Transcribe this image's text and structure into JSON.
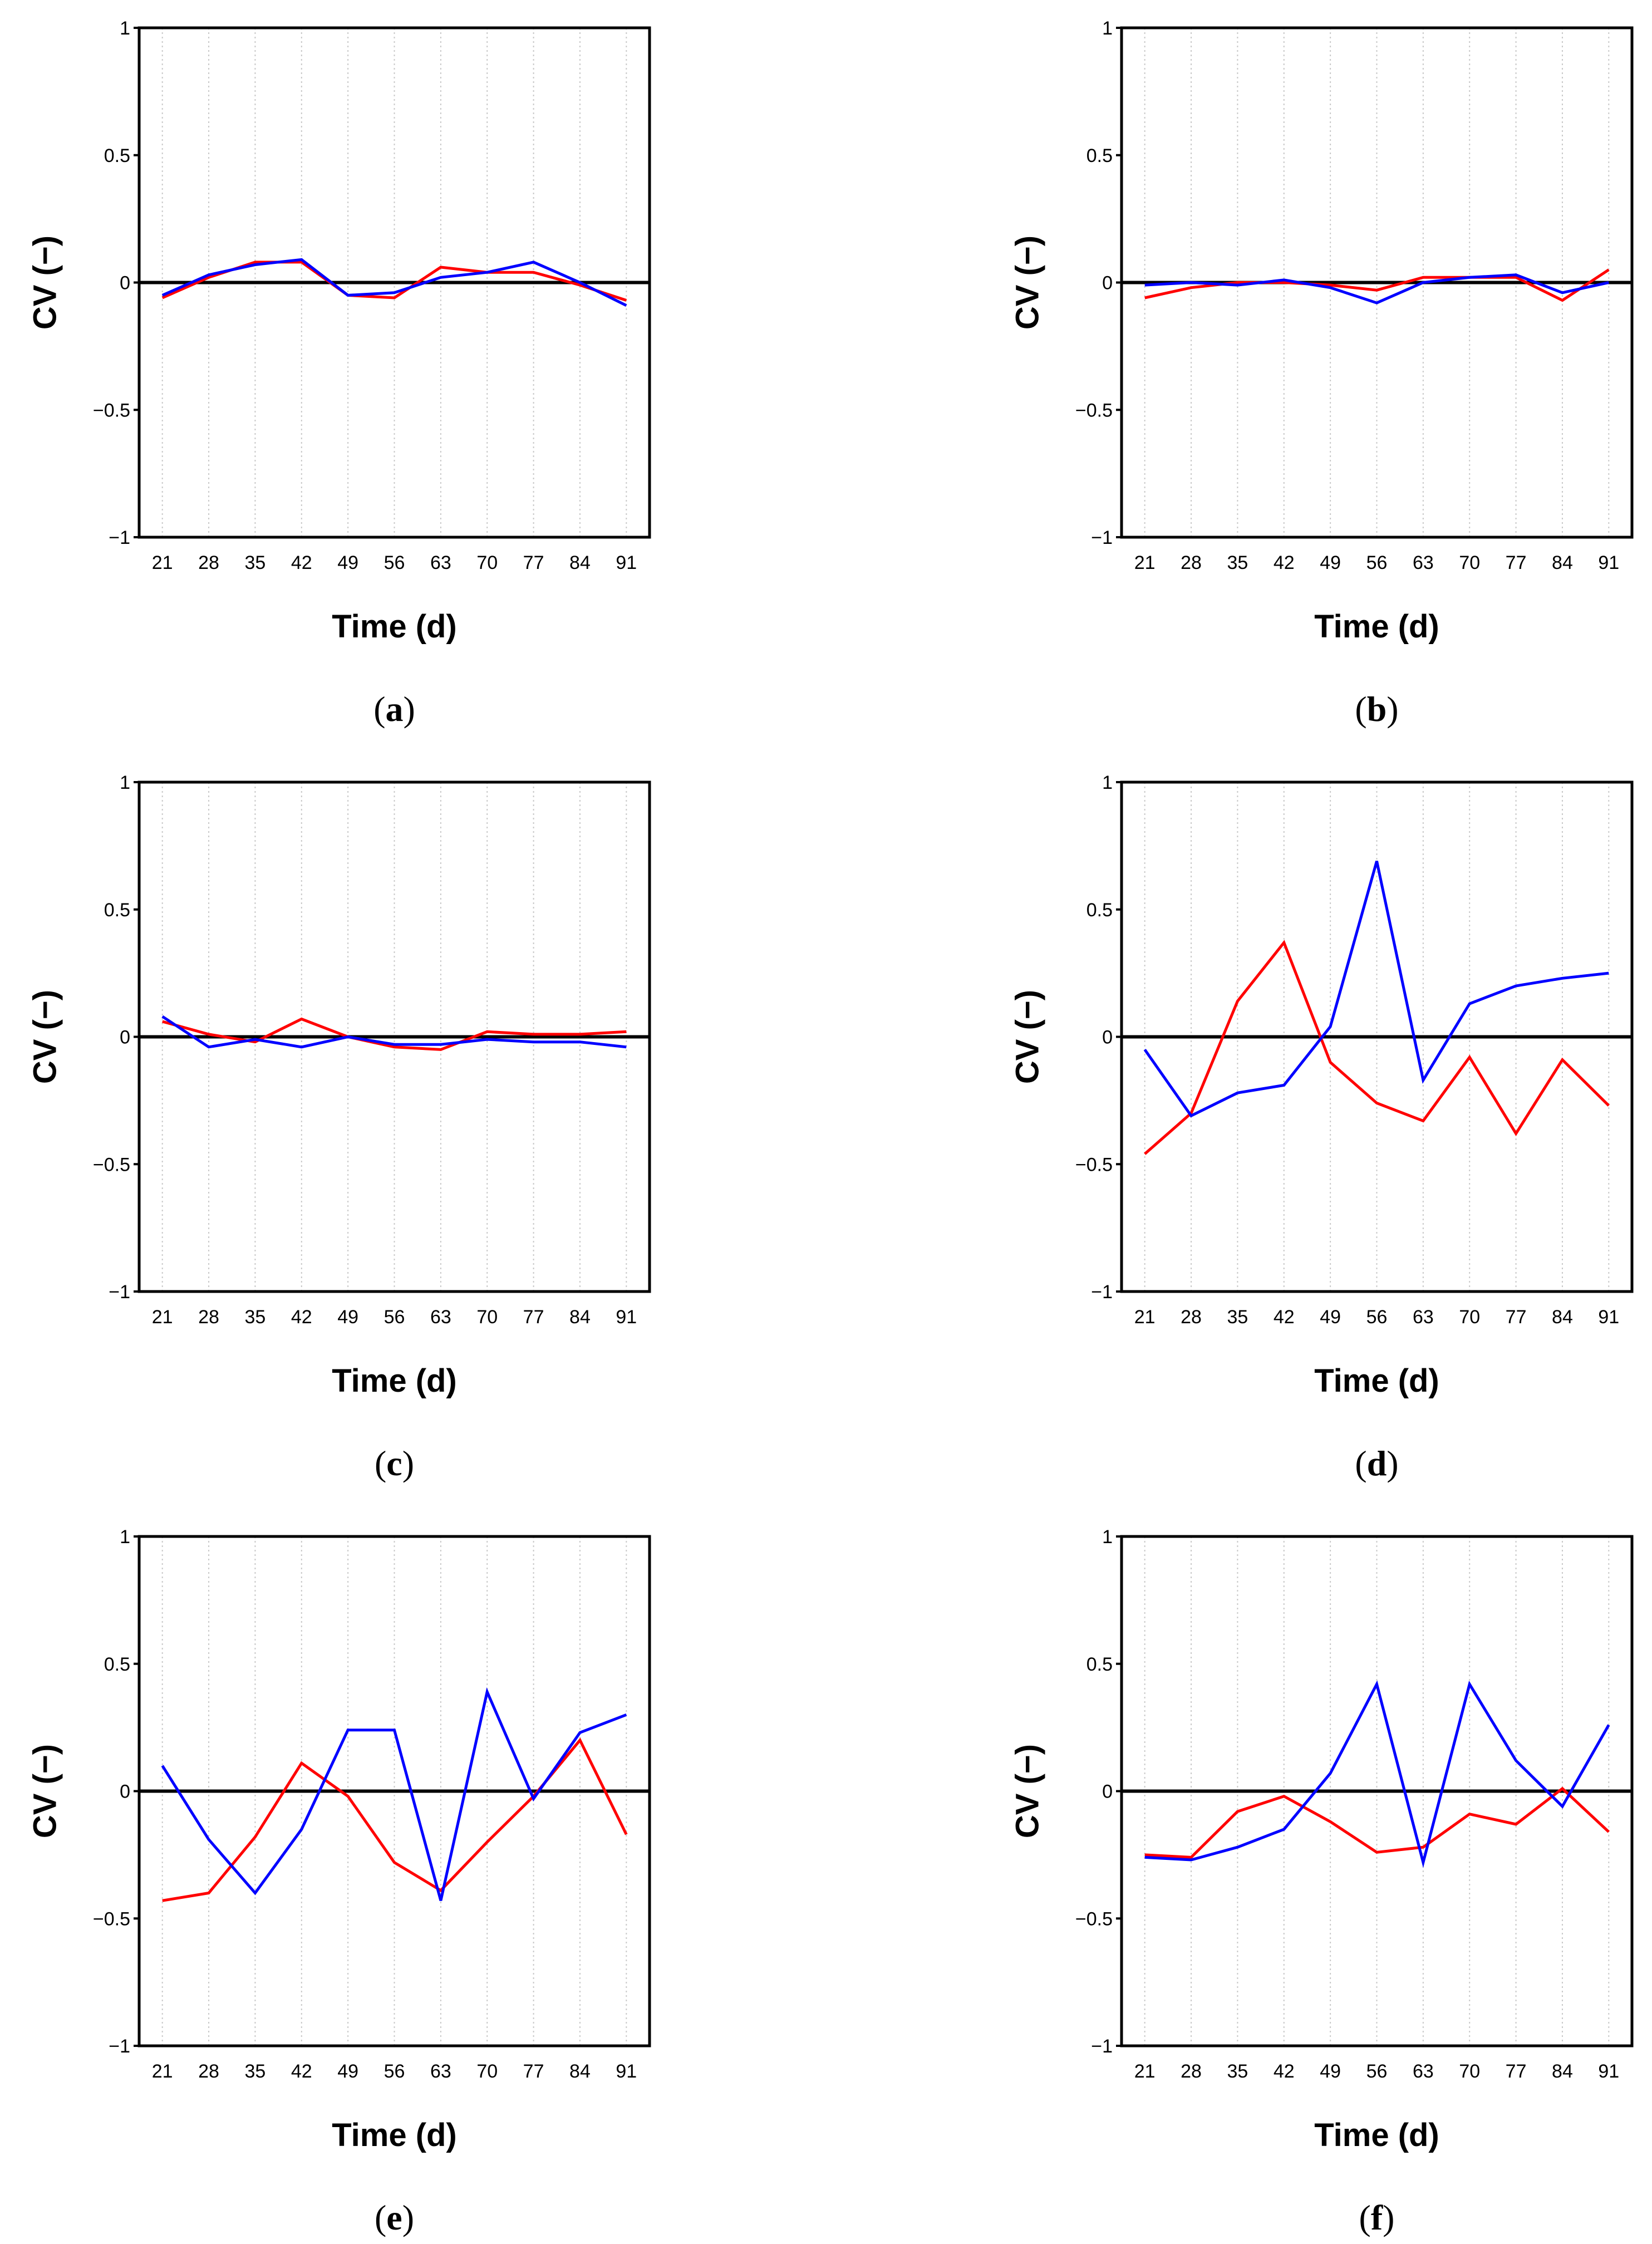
{
  "series_colors": {
    "red": "#ff0000",
    "blue": "#0000ff"
  },
  "chart_data": [
    {
      "type": "line",
      "caption": "(a)",
      "xlabel": "Time (d)",
      "ylabel": "CV (−)",
      "ylim": [
        -1,
        1
      ],
      "yticks": [
        "−1",
        "−0.5",
        "0",
        "0.5",
        "1"
      ],
      "x": [
        "21",
        "28",
        "35",
        "42",
        "49",
        "56",
        "63",
        "70",
        "77",
        "84",
        "91"
      ],
      "grid": "vertical dotted",
      "series": [
        {
          "color": "#ff0000",
          "values": [
            -0.06,
            0.02,
            0.08,
            0.08,
            -0.05,
            -0.06,
            0.06,
            0.04,
            0.04,
            -0.01,
            -0.07
          ]
        },
        {
          "color": "#0000ff",
          "values": [
            -0.05,
            0.03,
            0.07,
            0.09,
            -0.05,
            -0.04,
            0.02,
            0.04,
            0.08,
            0.0,
            -0.09
          ]
        }
      ]
    },
    {
      "type": "line",
      "caption": "(b)",
      "xlabel": "Time (d)",
      "ylabel": "CV (−)",
      "ylim": [
        -1,
        1
      ],
      "yticks": [
        "−1",
        "−0.5",
        "0",
        "0.5",
        "1"
      ],
      "x": [
        "21",
        "28",
        "35",
        "42",
        "49",
        "56",
        "63",
        "70",
        "77",
        "84",
        "91"
      ],
      "grid": "vertical dotted",
      "series": [
        {
          "color": "#ff0000",
          "values": [
            -0.06,
            -0.02,
            0.0,
            0.0,
            -0.01,
            -0.03,
            0.02,
            0.02,
            0.02,
            -0.07,
            0.05
          ]
        },
        {
          "color": "#0000ff",
          "values": [
            -0.01,
            0.0,
            -0.01,
            0.01,
            -0.02,
            -0.08,
            0.0,
            0.02,
            0.03,
            -0.04,
            0.0
          ]
        }
      ]
    },
    {
      "type": "line",
      "caption": "(c)",
      "xlabel": "Time (d)",
      "ylabel": "CV (−)",
      "ylim": [
        -1,
        1
      ],
      "yticks": [
        "−1",
        "−0.5",
        "0",
        "0.5",
        "1"
      ],
      "x": [
        "21",
        "28",
        "35",
        "42",
        "49",
        "56",
        "63",
        "70",
        "77",
        "84",
        "91"
      ],
      "grid": "vertical dotted",
      "series": [
        {
          "color": "#ff0000",
          "values": [
            0.06,
            0.01,
            -0.02,
            0.07,
            0.0,
            -0.04,
            -0.05,
            0.02,
            0.01,
            0.01,
            0.02
          ]
        },
        {
          "color": "#0000ff",
          "values": [
            0.08,
            -0.04,
            -0.01,
            -0.04,
            0.0,
            -0.03,
            -0.03,
            -0.01,
            -0.02,
            -0.02,
            -0.04
          ]
        }
      ]
    },
    {
      "type": "line",
      "caption": "(d)",
      "xlabel": "Time (d)",
      "ylabel": "CV (−)",
      "ylim": [
        -1,
        1
      ],
      "yticks": [
        "−1",
        "−0.5",
        "0",
        "0.5",
        "1"
      ],
      "x": [
        "21",
        "28",
        "35",
        "42",
        "49",
        "56",
        "63",
        "70",
        "77",
        "84",
        "91"
      ],
      "grid": "vertical dotted",
      "series": [
        {
          "color": "#ff0000",
          "values": [
            -0.46,
            -0.3,
            0.14,
            0.37,
            -0.1,
            -0.26,
            -0.33,
            -0.08,
            -0.38,
            -0.09,
            -0.27
          ]
        },
        {
          "color": "#0000ff",
          "values": [
            -0.05,
            -0.31,
            -0.22,
            -0.19,
            0.04,
            0.69,
            -0.17,
            0.13,
            0.2,
            0.23,
            0.25
          ]
        }
      ]
    },
    {
      "type": "line",
      "caption": "(e)",
      "xlabel": "Time (d)",
      "ylabel": "CV (−)",
      "ylim": [
        -1,
        1
      ],
      "yticks": [
        "−1",
        "−0.5",
        "0",
        "0.5",
        "1"
      ],
      "x": [
        "21",
        "28",
        "35",
        "42",
        "49",
        "56",
        "63",
        "70",
        "77",
        "84",
        "91"
      ],
      "grid": "vertical dotted",
      "series": [
        {
          "color": "#ff0000",
          "values": [
            -0.43,
            -0.4,
            -0.18,
            0.11,
            -0.02,
            -0.28,
            -0.39,
            -0.2,
            -0.02,
            0.2,
            -0.17
          ]
        },
        {
          "color": "#0000ff",
          "values": [
            0.1,
            -0.19,
            -0.4,
            -0.15,
            0.24,
            0.24,
            -0.43,
            0.39,
            -0.03,
            0.23,
            0.3
          ]
        }
      ]
    },
    {
      "type": "line",
      "caption": "(f)",
      "xlabel": "Time (d)",
      "ylabel": "CV (−)",
      "ylim": [
        -1,
        1
      ],
      "yticks": [
        "−1",
        "−0.5",
        "0",
        "0.5",
        "1"
      ],
      "x": [
        "21",
        "28",
        "35",
        "42",
        "49",
        "56",
        "63",
        "70",
        "77",
        "84",
        "91"
      ],
      "grid": "vertical dotted",
      "series": [
        {
          "color": "#ff0000",
          "values": [
            -0.25,
            -0.26,
            -0.08,
            -0.02,
            -0.12,
            -0.24,
            -0.22,
            -0.09,
            -0.13,
            0.01,
            -0.16
          ]
        },
        {
          "color": "#0000ff",
          "values": [
            -0.26,
            -0.27,
            -0.22,
            -0.15,
            0.07,
            0.42,
            -0.28,
            0.42,
            0.12,
            -0.06,
            0.26
          ]
        }
      ]
    }
  ]
}
